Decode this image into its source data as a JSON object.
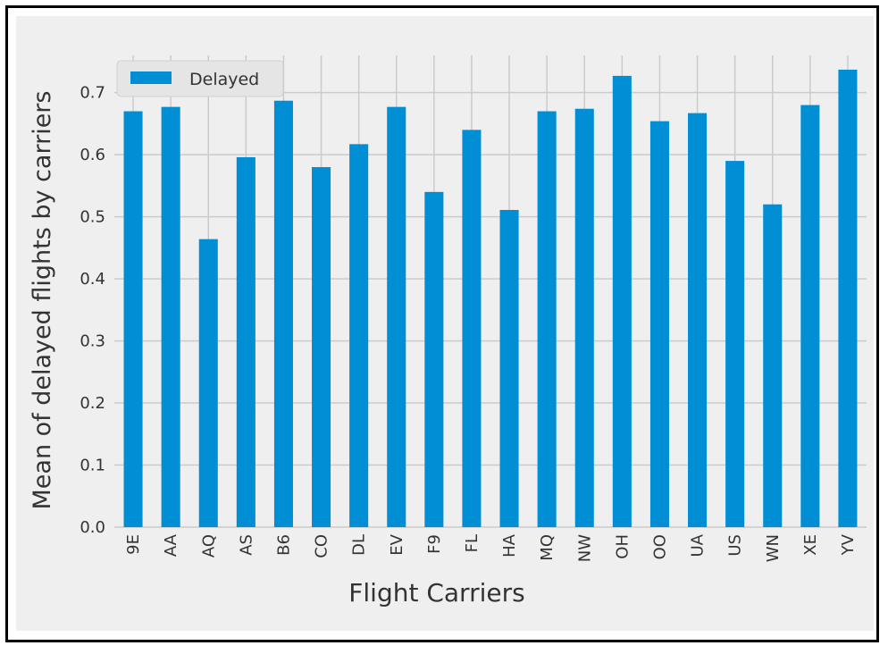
{
  "colors": {
    "figure_background": "#efefef",
    "plot_background": "#efefef",
    "grid": "#cbcbcb",
    "bar": "#008fd5",
    "text": "#333333",
    "frame_border": "#000000"
  },
  "chart_data": {
    "type": "bar",
    "title": "",
    "xlabel": "Flight Carriers",
    "ylabel": "Mean of delayed flights by carriers",
    "categories": [
      "9E",
      "AA",
      "AQ",
      "AS",
      "B6",
      "CO",
      "DL",
      "EV",
      "F9",
      "FL",
      "HA",
      "MQ",
      "NW",
      "OH",
      "OO",
      "UA",
      "US",
      "WN",
      "XE",
      "YV"
    ],
    "series": [
      {
        "name": "Delayed",
        "color": "#008fd5",
        "values": [
          0.67,
          0.677,
          0.464,
          0.596,
          0.687,
          0.58,
          0.617,
          0.677,
          0.54,
          0.64,
          0.511,
          0.67,
          0.674,
          0.727,
          0.654,
          0.667,
          0.59,
          0.52,
          0.68,
          0.737
        ]
      }
    ],
    "ylim": [
      0,
      0.76
    ],
    "yticks": [
      "0.0",
      "0.1",
      "0.2",
      "0.3",
      "0.4",
      "0.5",
      "0.6",
      "0.7"
    ],
    "grid": true,
    "legend_position": "top-left",
    "x_tick_rotation": "vertical"
  }
}
